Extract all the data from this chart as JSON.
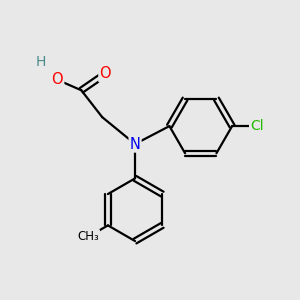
{
  "background_color": "#e8e8e8",
  "atom_colors": {
    "H": "#4a8a8a",
    "O": "#ff0000",
    "N": "#0000ee",
    "C": "#000000",
    "Cl": "#22bb00"
  },
  "bond_color": "#000000",
  "bond_width": 1.6,
  "figsize": [
    3.0,
    3.0
  ],
  "dpi": 100,
  "xlim": [
    0,
    10
  ],
  "ylim": [
    0,
    10
  ]
}
